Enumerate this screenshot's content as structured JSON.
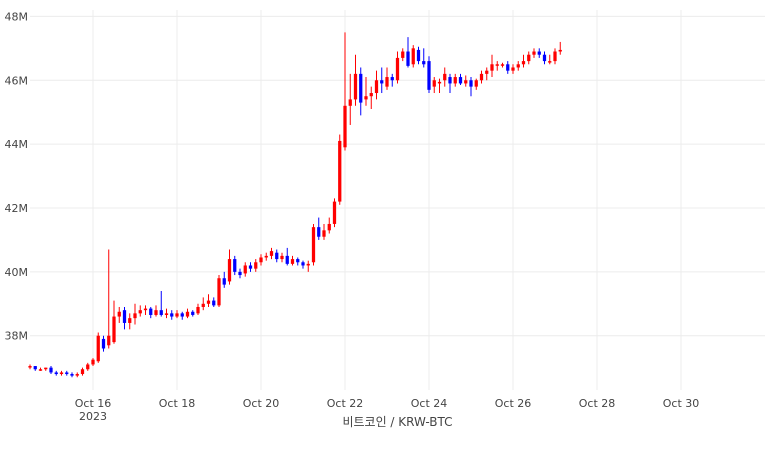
{
  "colors": {
    "up": "#ff0000",
    "down": "#0000ff",
    "grid": "#ececec",
    "text": "#444444"
  },
  "chart_data": {
    "type": "candlestick",
    "xlabel": "비트코인 / KRW-BTC",
    "ylim": [
      36300000,
      48200000
    ],
    "xlim": [
      0,
      17.5
    ],
    "y_ticks": [
      {
        "value": 38000000,
        "label": "38M"
      },
      {
        "value": 40000000,
        "label": "40M"
      },
      {
        "value": 42000000,
        "label": "42M"
      },
      {
        "value": 44000000,
        "label": "44M"
      },
      {
        "value": 46000000,
        "label": "46M"
      },
      {
        "value": 48000000,
        "label": "48M"
      }
    ],
    "x_ticks": [
      {
        "x": 1.5,
        "label": "Oct 16",
        "sublabel": "2023"
      },
      {
        "x": 3.5,
        "label": "Oct 18"
      },
      {
        "x": 5.5,
        "label": "Oct 20"
      },
      {
        "x": 7.5,
        "label": "Oct 22"
      },
      {
        "x": 9.5,
        "label": "Oct 24"
      },
      {
        "x": 11.5,
        "label": "Oct 26"
      },
      {
        "x": 13.5,
        "label": "Oct 28"
      },
      {
        "x": 15.5,
        "label": "Oct 30"
      }
    ],
    "candle_interval_days": 0.125,
    "candles": [
      [
        37.05,
        37.05,
        36.95,
        37.1
      ],
      [
        37.05,
        36.95,
        36.9,
        37.05
      ],
      [
        36.95,
        36.95,
        36.9,
        37.0
      ],
      [
        36.95,
        37.0,
        36.9,
        37.0
      ],
      [
        37.0,
        36.85,
        36.8,
        37.05
      ],
      [
        36.85,
        36.8,
        36.75,
        36.9
      ],
      [
        36.8,
        36.85,
        36.75,
        36.9
      ],
      [
        36.85,
        36.8,
        36.75,
        36.9
      ],
      [
        36.8,
        36.75,
        36.7,
        36.85
      ],
      [
        36.75,
        36.8,
        36.7,
        36.85
      ],
      [
        36.8,
        36.95,
        36.75,
        37.0
      ],
      [
        36.95,
        37.1,
        36.9,
        37.15
      ],
      [
        37.1,
        37.25,
        37.05,
        37.3
      ],
      [
        37.2,
        38.0,
        37.15,
        38.1
      ],
      [
        37.9,
        37.6,
        37.5,
        38.0
      ],
      [
        37.7,
        38.0,
        37.6,
        40.7
      ],
      [
        37.8,
        38.6,
        37.75,
        39.1
      ],
      [
        38.6,
        38.75,
        38.4,
        38.9
      ],
      [
        38.8,
        38.4,
        38.2,
        38.9
      ],
      [
        38.4,
        38.55,
        38.2,
        38.7
      ],
      [
        38.55,
        38.7,
        38.35,
        39.0
      ],
      [
        38.7,
        38.8,
        38.6,
        38.95
      ],
      [
        38.8,
        38.85,
        38.65,
        38.95
      ],
      [
        38.85,
        38.65,
        38.55,
        38.9
      ],
      [
        38.65,
        38.8,
        38.6,
        38.95
      ],
      [
        38.8,
        38.65,
        38.6,
        39.4
      ],
      [
        38.65,
        38.7,
        38.55,
        38.85
      ],
      [
        38.7,
        38.6,
        38.5,
        38.8
      ],
      [
        38.6,
        38.7,
        38.55,
        38.8
      ],
      [
        38.7,
        38.6,
        38.5,
        38.75
      ],
      [
        38.6,
        38.75,
        38.55,
        38.85
      ],
      [
        38.75,
        38.65,
        38.6,
        38.8
      ],
      [
        38.7,
        38.9,
        38.65,
        39.0
      ],
      [
        38.9,
        39.0,
        38.8,
        39.2
      ],
      [
        39.0,
        39.1,
        38.9,
        39.3
      ],
      [
        39.1,
        38.95,
        38.9,
        39.2
      ],
      [
        38.95,
        39.8,
        38.9,
        39.9
      ],
      [
        39.8,
        39.6,
        39.5,
        40.0
      ],
      [
        39.7,
        40.4,
        39.6,
        40.7
      ],
      [
        40.4,
        40.0,
        39.9,
        40.5
      ],
      [
        40.0,
        39.9,
        39.8,
        40.1
      ],
      [
        39.95,
        40.2,
        39.85,
        40.3
      ],
      [
        40.2,
        40.1,
        40.0,
        40.3
      ],
      [
        40.1,
        40.3,
        40.0,
        40.4
      ],
      [
        40.3,
        40.45,
        40.2,
        40.55
      ],
      [
        40.45,
        40.5,
        40.35,
        40.6
      ],
      [
        40.5,
        40.65,
        40.4,
        40.75
      ],
      [
        40.6,
        40.4,
        40.3,
        40.7
      ],
      [
        40.4,
        40.5,
        40.3,
        40.6
      ],
      [
        40.5,
        40.25,
        40.2,
        40.75
      ],
      [
        40.25,
        40.4,
        40.2,
        40.5
      ],
      [
        40.4,
        40.3,
        40.2,
        40.45
      ],
      [
        40.3,
        40.2,
        40.1,
        40.35
      ],
      [
        40.2,
        40.25,
        40.0,
        40.35
      ],
      [
        40.3,
        41.4,
        40.2,
        41.5
      ],
      [
        41.4,
        41.1,
        41.0,
        41.7
      ],
      [
        41.1,
        41.3,
        41.0,
        41.5
      ],
      [
        41.3,
        41.5,
        41.2,
        41.7
      ],
      [
        41.5,
        42.2,
        41.4,
        42.3
      ],
      [
        42.2,
        44.1,
        42.1,
        44.3
      ],
      [
        43.9,
        45.2,
        43.8,
        47.5
      ],
      [
        45.2,
        45.4,
        44.6,
        46.2
      ],
      [
        45.4,
        46.2,
        45.2,
        46.8
      ],
      [
        46.2,
        45.3,
        44.9,
        46.4
      ],
      [
        45.4,
        45.5,
        45.2,
        46.1
      ],
      [
        45.5,
        45.6,
        45.1,
        45.8
      ],
      [
        45.6,
        46.0,
        45.4,
        46.3
      ],
      [
        46.0,
        45.9,
        45.6,
        46.4
      ],
      [
        45.8,
        46.1,
        45.7,
        46.4
      ],
      [
        46.1,
        46.0,
        45.8,
        46.2
      ],
      [
        46.0,
        46.7,
        45.9,
        46.9
      ],
      [
        46.7,
        46.9,
        46.6,
        47.0
      ],
      [
        46.9,
        46.45,
        46.4,
        47.35
      ],
      [
        46.5,
        47.0,
        46.4,
        47.1
      ],
      [
        46.95,
        46.6,
        46.5,
        47.05
      ],
      [
        46.6,
        46.5,
        46.4,
        47.0
      ],
      [
        46.6,
        45.7,
        45.6,
        46.75
      ],
      [
        45.8,
        46.0,
        45.6,
        46.1
      ],
      [
        45.9,
        45.95,
        45.6,
        46.05
      ],
      [
        46.0,
        46.2,
        45.8,
        46.4
      ],
      [
        46.1,
        45.9,
        45.6,
        46.2
      ],
      [
        45.9,
        46.1,
        45.8,
        46.2
      ],
      [
        46.1,
        45.9,
        45.85,
        46.2
      ],
      [
        45.9,
        46.0,
        45.8,
        46.15
      ],
      [
        46.0,
        45.8,
        45.5,
        46.1
      ],
      [
        45.8,
        46.0,
        45.7,
        46.05
      ],
      [
        46.0,
        46.2,
        45.9,
        46.3
      ],
      [
        46.2,
        46.3,
        46.0,
        46.4
      ],
      [
        46.3,
        46.5,
        46.1,
        46.8
      ],
      [
        46.5,
        46.5,
        46.3,
        46.6
      ],
      [
        46.5,
        46.5,
        46.4,
        46.55
      ],
      [
        46.5,
        46.3,
        46.2,
        46.6
      ],
      [
        46.3,
        46.4,
        46.2,
        46.5
      ],
      [
        46.4,
        46.5,
        46.3,
        46.6
      ],
      [
        46.5,
        46.6,
        46.4,
        46.8
      ],
      [
        46.6,
        46.8,
        46.5,
        46.9
      ],
      [
        46.8,
        46.9,
        46.7,
        47.0
      ],
      [
        46.9,
        46.8,
        46.7,
        47.0
      ],
      [
        46.8,
        46.6,
        46.5,
        46.9
      ],
      [
        46.6,
        46.6,
        46.5,
        46.8
      ],
      [
        46.6,
        46.9,
        46.5,
        47.0
      ],
      [
        46.9,
        46.95,
        46.8,
        47.2
      ]
    ]
  }
}
